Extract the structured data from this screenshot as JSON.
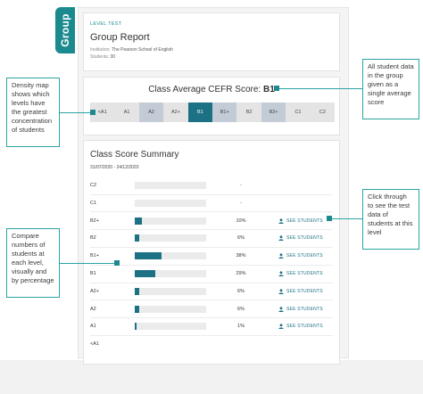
{
  "tab": {
    "label": "Group"
  },
  "header": {
    "level_test_label": "LEVEL TEST",
    "title": "Group Report",
    "institution_label": "Institution:",
    "institution_value": "The Pearson School of English",
    "students_label": "Students:",
    "students_value": "30"
  },
  "density": {
    "average_label": "Class Average CEFR Score:",
    "average_value": "B1",
    "levels": [
      {
        "label": "<A1",
        "shade": "#e4e4e4",
        "text": "#444444"
      },
      {
        "label": "A1",
        "shade": "#e4e4e4",
        "text": "#444444"
      },
      {
        "label": "A2",
        "shade": "#c2cbd6",
        "text": "#444444"
      },
      {
        "label": "A2+",
        "shade": "#e4e4e4",
        "text": "#444444"
      },
      {
        "label": "B1",
        "shade": "#1c7184",
        "text": "#ffffff"
      },
      {
        "label": "B1+",
        "shade": "#c2cbd6",
        "text": "#444444"
      },
      {
        "label": "B2",
        "shade": "#e4e4e4",
        "text": "#444444"
      },
      {
        "label": "B2+",
        "shade": "#c2cbd6",
        "text": "#444444"
      },
      {
        "label": "C1",
        "shade": "#e4e4e4",
        "text": "#444444"
      },
      {
        "label": "C2",
        "shade": "#e4e4e4",
        "text": "#444444"
      }
    ]
  },
  "summary": {
    "title": "Class Score Summary",
    "date_range": "31/07/2020 - 24/12/2020",
    "see_label": "SEE STUDENTS",
    "rows": [
      {
        "level": "C2",
        "percent": "-",
        "fraction": 0,
        "link": false
      },
      {
        "level": "C1",
        "percent": "-",
        "fraction": 0,
        "link": false
      },
      {
        "level": "B2+",
        "percent": "10%",
        "fraction": 0.1,
        "link": true
      },
      {
        "level": "B2",
        "percent": "6%",
        "fraction": 0.06,
        "link": true
      },
      {
        "level": "B1+",
        "percent": "38%",
        "fraction": 0.38,
        "link": true
      },
      {
        "level": "B1",
        "percent": "29%",
        "fraction": 0.29,
        "link": true
      },
      {
        "level": "A2+",
        "percent": "6%",
        "fraction": 0.06,
        "link": true
      },
      {
        "level": "A2",
        "percent": "6%",
        "fraction": 0.06,
        "link": true
      },
      {
        "level": "A1",
        "percent": "1%",
        "fraction": 0.01,
        "link": true
      },
      {
        "level": "<A1",
        "percent": "",
        "fraction": 0,
        "link": false
      }
    ]
  },
  "annotations": {
    "density": "Density map shows which levels have the greatest concentration of students",
    "average": "All student data in the group given as a single average score",
    "compare": "Compare numbers of students at each level, visually and by percentage",
    "click": "Click through to see the test data of students at this level"
  },
  "colors": {
    "accent": "#1b8a8e",
    "bar": "#1c7184",
    "callout_border": "#2aa5a1"
  }
}
